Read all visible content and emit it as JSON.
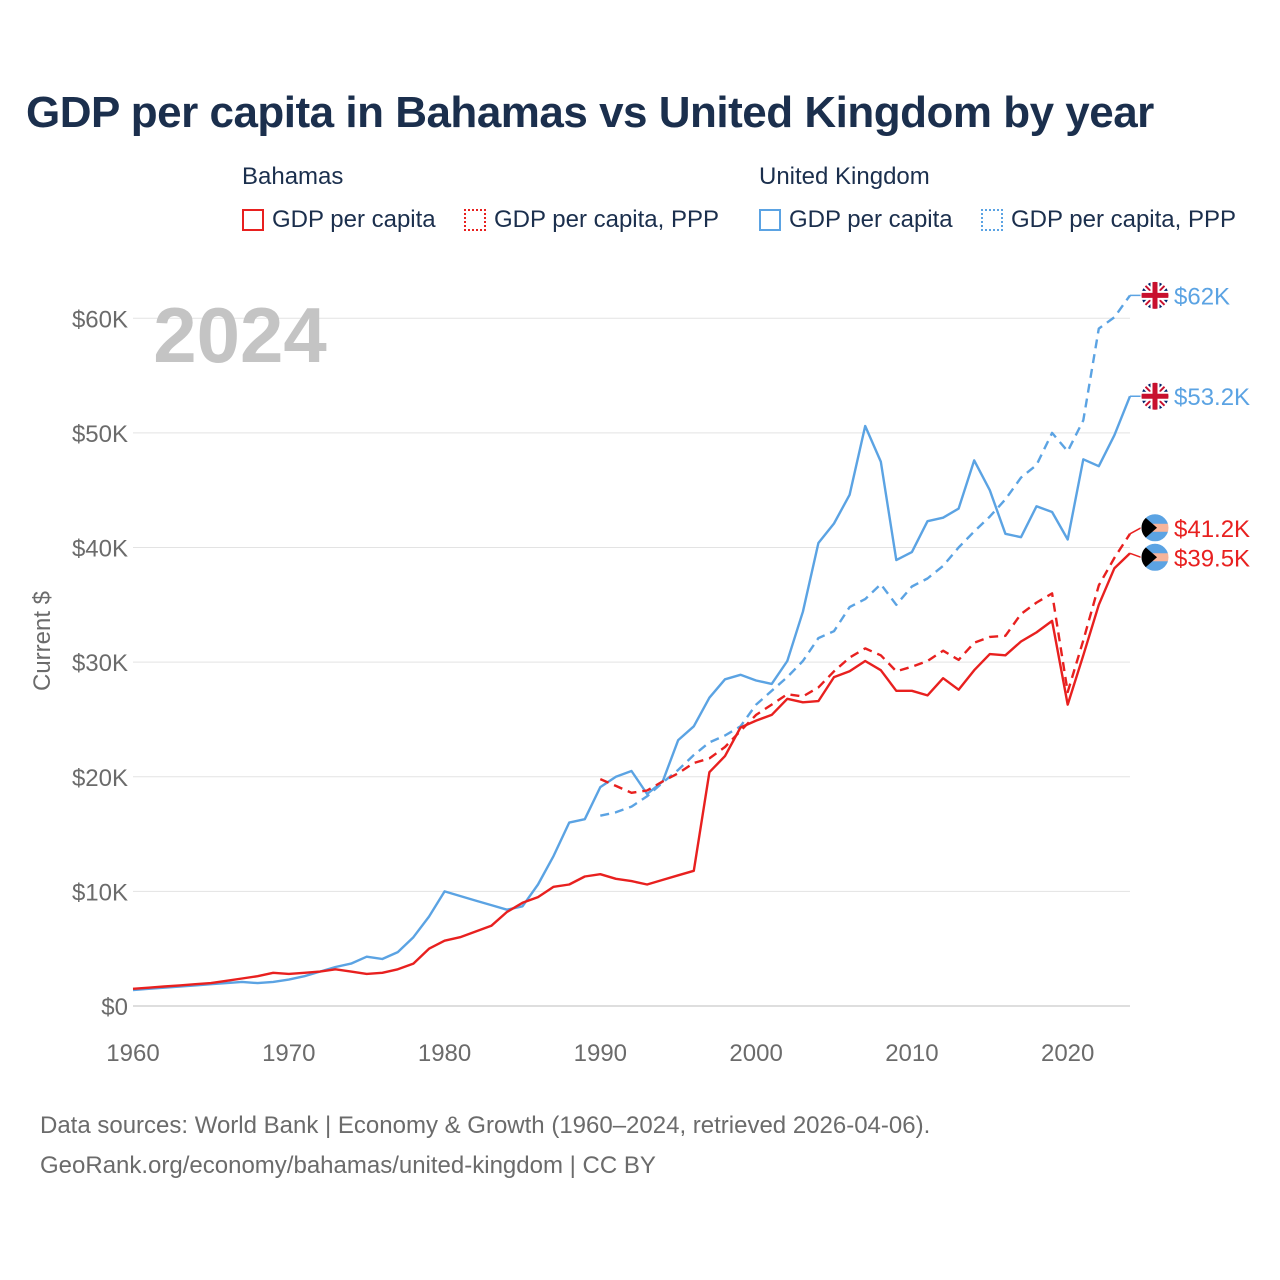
{
  "title": "GDP per capita in Bahamas vs United Kingdom by year",
  "legend": {
    "groups": [
      {
        "country": "Bahamas",
        "color": "#e8201f",
        "items": [
          "GDP per capita",
          "GDP per capita, PPP"
        ]
      },
      {
        "country": "United Kingdom",
        "color": "#5ba3e3",
        "items": [
          "GDP per capita",
          "GDP per capita, PPP"
        ]
      }
    ]
  },
  "source": {
    "line1": "Data sources: World Bank | Economy & Growth (1960–2024, retrieved 2026-04-06).",
    "line2": "GeoRank.org/economy/bahamas/united-kingdom | CC BY"
  },
  "chart_data": {
    "type": "line",
    "year_label": "2024",
    "ylabel": "Current $",
    "xlabel": "",
    "xlim": [
      1960,
      2024
    ],
    "ylim": [
      0,
      65000
    ],
    "grid": true,
    "x_ticks": [
      1960,
      1970,
      1980,
      1990,
      2000,
      2010,
      2020
    ],
    "x_tick_labels": [
      "1960",
      "1970",
      "1980",
      "1990",
      "2000",
      "2010",
      "2020"
    ],
    "y_ticks": [
      0,
      10000,
      20000,
      30000,
      40000,
      50000,
      60000
    ],
    "y_tick_labels": [
      "$0",
      "$10K",
      "$20K",
      "$30K",
      "$40K",
      "$50K",
      "$60K"
    ],
    "series": [
      {
        "name": "United Kingdom GDP per capita, PPP",
        "country": "United Kingdom",
        "color": "#5ba3e3",
        "dashed": true,
        "end_label": "$62K",
        "flag": "united-kingdom-flag-icon",
        "x": [
          1990,
          1991,
          1992,
          1993,
          1994,
          1995,
          1996,
          1997,
          1998,
          1999,
          2000,
          2001,
          2002,
          2003,
          2004,
          2005,
          2006,
          2007,
          2008,
          2009,
          2010,
          2011,
          2012,
          2013,
          2014,
          2015,
          2016,
          2017,
          2018,
          2019,
          2020,
          2021,
          2022,
          2023,
          2024
        ],
        "values": [
          16600,
          16900,
          17400,
          18300,
          19500,
          20600,
          21900,
          23000,
          23600,
          24400,
          26300,
          27500,
          28700,
          30100,
          32100,
          32700,
          34800,
          35500,
          36800,
          35000,
          36600,
          37300,
          38400,
          40000,
          41400,
          42700,
          44200,
          46100,
          47200,
          50000,
          48400,
          51100,
          59100,
          60100,
          62000
        ]
      },
      {
        "name": "United Kingdom GDP per capita",
        "country": "United Kingdom",
        "color": "#5ba3e3",
        "dashed": false,
        "end_label": "$53.2K",
        "flag": "united-kingdom-flag-icon",
        "x": [
          1960,
          1961,
          1962,
          1963,
          1964,
          1965,
          1966,
          1967,
          1968,
          1969,
          1970,
          1971,
          1972,
          1973,
          1974,
          1975,
          1976,
          1977,
          1978,
          1979,
          1980,
          1981,
          1982,
          1983,
          1984,
          1985,
          1986,
          1987,
          1988,
          1989,
          1990,
          1991,
          1992,
          1993,
          1994,
          1995,
          1996,
          1997,
          1998,
          1999,
          2000,
          2001,
          2002,
          2003,
          2004,
          2005,
          2006,
          2007,
          2008,
          2009,
          2010,
          2011,
          2012,
          2013,
          2014,
          2015,
          2016,
          2017,
          2018,
          2019,
          2020,
          2021,
          2022,
          2023,
          2024
        ],
        "values": [
          1400,
          1500,
          1600,
          1700,
          1800,
          1900,
          2000,
          2100,
          2000,
          2100,
          2300,
          2600,
          3000,
          3400,
          3700,
          4300,
          4100,
          4700,
          6000,
          7800,
          10000,
          9600,
          9200,
          8800,
          8400,
          8700,
          10600,
          13100,
          16000,
          16300,
          19100,
          20000,
          20500,
          18500,
          19600,
          23200,
          24400,
          26900,
          28500,
          28900,
          28400,
          28100,
          30100,
          34400,
          40400,
          42100,
          44600,
          50600,
          47500,
          38900,
          39600,
          42300,
          42600,
          43400,
          47600,
          45000,
          41200,
          40900,
          43600,
          43100,
          40700,
          47700,
          47100,
          49800,
          53200
        ]
      },
      {
        "name": "Bahamas GDP per capita, PPP",
        "country": "Bahamas",
        "color": "#e8201f",
        "dashed": true,
        "end_label": "$41.2K",
        "flag": "bahamas-flag-icon",
        "x": [
          1990,
          1991,
          1992,
          1993,
          1994,
          1995,
          1996,
          1997,
          1998,
          1999,
          2000,
          2001,
          2002,
          2003,
          2004,
          2005,
          2006,
          2007,
          2008,
          2009,
          2010,
          2011,
          2012,
          2013,
          2014,
          2015,
          2016,
          2017,
          2018,
          2019,
          2020,
          2021,
          2022,
          2023,
          2024
        ],
        "values": [
          19800,
          19200,
          18600,
          18800,
          19600,
          20300,
          21200,
          21600,
          22600,
          24000,
          25400,
          26300,
          27200,
          27000,
          27800,
          29200,
          30400,
          31200,
          30600,
          29200,
          29600,
          30100,
          31000,
          30200,
          31700,
          32200,
          32300,
          34200,
          35200,
          36000,
          27400,
          31900,
          36700,
          39100,
          41200
        ]
      },
      {
        "name": "Bahamas GDP per capita",
        "country": "Bahamas",
        "color": "#e8201f",
        "dashed": false,
        "end_label": "$39.5K",
        "flag": "bahamas-flag-icon",
        "x": [
          1960,
          1961,
          1962,
          1963,
          1964,
          1965,
          1966,
          1967,
          1968,
          1969,
          1970,
          1971,
          1972,
          1973,
          1974,
          1975,
          1976,
          1977,
          1978,
          1979,
          1980,
          1981,
          1982,
          1983,
          1984,
          1985,
          1986,
          1987,
          1988,
          1989,
          1990,
          1991,
          1992,
          1993,
          1994,
          1995,
          1996,
          1997,
          1998,
          1999,
          2000,
          2001,
          2002,
          2003,
          2004,
          2005,
          2006,
          2007,
          2008,
          2009,
          2010,
          2011,
          2012,
          2013,
          2014,
          2015,
          2016,
          2017,
          2018,
          2019,
          2020,
          2021,
          2022,
          2023,
          2024
        ],
        "values": [
          1500,
          1600,
          1700,
          1800,
          1900,
          2000,
          2200,
          2400,
          2600,
          2900,
          2800,
          2900,
          3000,
          3200,
          3000,
          2800,
          2900,
          3200,
          3700,
          5000,
          5700,
          6000,
          6500,
          7000,
          8200,
          9000,
          9500,
          10400,
          10600,
          11300,
          11500,
          11100,
          10900,
          10600,
          11000,
          11400,
          11800,
          20400,
          21800,
          24300,
          24900,
          25400,
          26800,
          26500,
          26600,
          28700,
          29200,
          30100,
          29300,
          27500,
          27500,
          27100,
          28600,
          27600,
          29300,
          30700,
          30600,
          31800,
          32600,
          33600,
          26300,
          30600,
          35000,
          38200,
          39500
        ]
      }
    ]
  }
}
